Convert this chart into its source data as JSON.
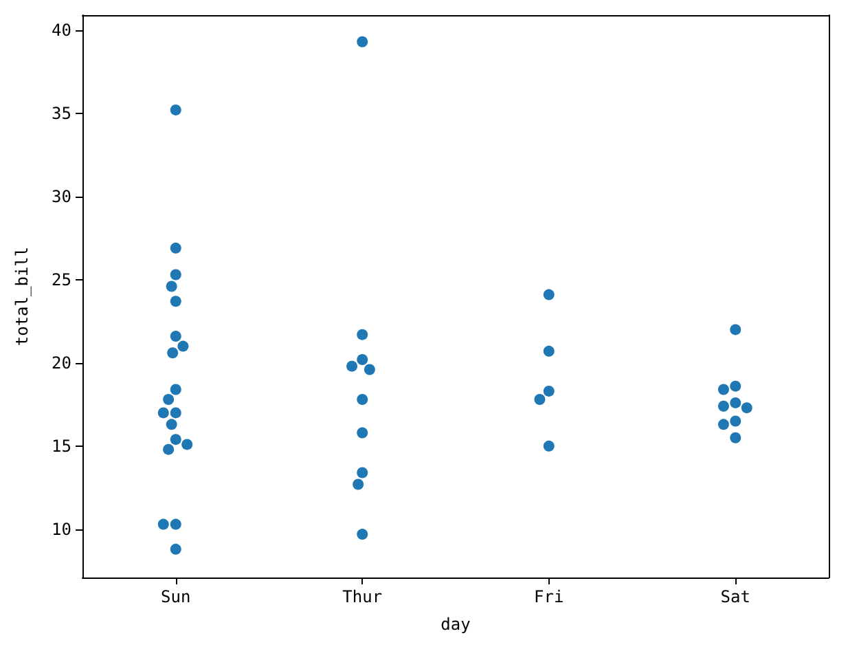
{
  "chart_data": {
    "type": "scatter",
    "xlabel": "day",
    "ylabel": "total_bill",
    "categories": [
      "Sun",
      "Thur",
      "Fri",
      "Sat"
    ],
    "series": [
      {
        "color": "#1f77b4",
        "x": [
          "Sun",
          "Sun",
          "Sun",
          "Sun",
          "Sun",
          "Sun",
          "Sun",
          "Sun",
          "Sun",
          "Sun",
          "Sun",
          "Sun",
          "Sun",
          "Sun",
          "Sun",
          "Sun",
          "Sun",
          "Sun",
          "Sun",
          "Thur",
          "Thur",
          "Thur",
          "Thur",
          "Thur",
          "Thur",
          "Thur",
          "Thur",
          "Thur",
          "Thur",
          "Fri",
          "Fri",
          "Fri",
          "Fri",
          "Fri",
          "Sat",
          "Sat",
          "Sat",
          "Sat",
          "Sat",
          "Sat",
          "Sat",
          "Sat",
          "Sat"
        ],
        "values": [
          35.2,
          26.9,
          25.3,
          24.6,
          23.7,
          21.6,
          21.0,
          20.6,
          18.4,
          17.8,
          17.0,
          17.0,
          16.3,
          15.4,
          15.1,
          14.8,
          10.3,
          10.3,
          8.8,
          39.3,
          21.7,
          20.2,
          19.8,
          19.6,
          17.8,
          15.8,
          13.4,
          12.7,
          9.7,
          24.1,
          20.7,
          18.3,
          17.8,
          15.0,
          22.0,
          18.6,
          18.4,
          17.6,
          17.4,
          17.3,
          16.5,
          16.3,
          15.5
        ]
      }
    ],
    "ylim": [
      7.1,
      40.9
    ],
    "yticks": [
      10,
      15,
      20,
      25,
      30,
      35,
      40
    ],
    "grid": false,
    "marker": "circle"
  }
}
